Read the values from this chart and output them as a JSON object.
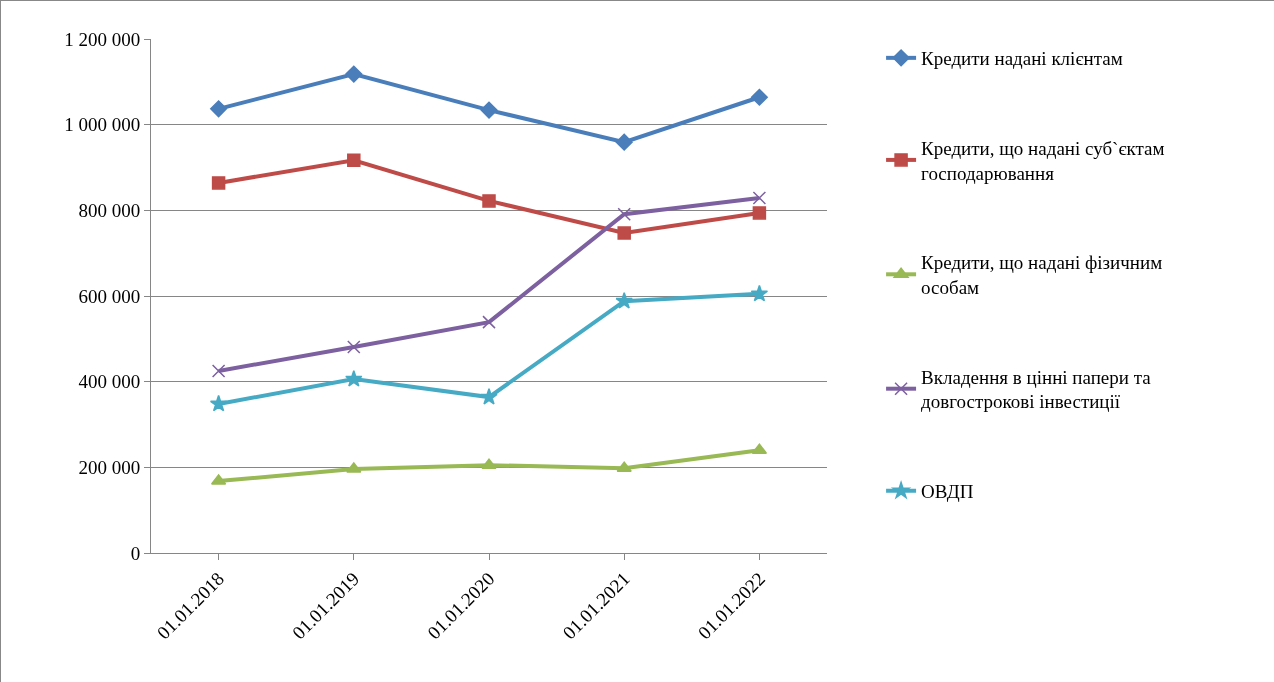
{
  "chart_data": {
    "type": "line",
    "categories": [
      "01.01.2018",
      "01.01.2019",
      "01.01.2020",
      "01.01.2021",
      "01.01.2022"
    ],
    "series": [
      {
        "name": "Кредити надані клієнтам",
        "color": "#4a7ebb",
        "marker": "diamond",
        "values": [
          1037000,
          1118000,
          1034000,
          959000,
          1064000
        ]
      },
      {
        "name": "Кредити, що надані суб`єктам господарювання",
        "color": "#be4b48",
        "marker": "square",
        "values": [
          864000,
          917000,
          822000,
          747000,
          794000
        ]
      },
      {
        "name": "Кредити, що надані фізичним особам",
        "color": "#98b954",
        "marker": "triangle",
        "values": [
          168000,
          196000,
          205000,
          198000,
          240000
        ]
      },
      {
        "name": "Вкладення в цінні папери та довгострокові інвестиції",
        "color": "#7d60a0",
        "marker": "cross",
        "values": [
          425000,
          481000,
          539000,
          791000,
          829000
        ]
      },
      {
        "name": "ОВДП",
        "color": "#46aac5",
        "marker": "star",
        "values": [
          348000,
          406000,
          364000,
          588000,
          605000
        ]
      }
    ],
    "ylim": [
      0,
      1200000
    ],
    "yticks": [
      0,
      {
        "value": 200000,
        "label": "200 000"
      },
      {
        "value": 400000,
        "label": "400 000"
      },
      {
        "value": 600000,
        "label": "600 000"
      },
      {
        "value": 800000,
        "label": "800 000"
      },
      {
        "value": 1000000,
        "label": "1 000 000"
      },
      {
        "value": 1200000,
        "label": "1 200 000"
      }
    ],
    "grid": "y",
    "legend": "right",
    "line_style": "solid"
  }
}
